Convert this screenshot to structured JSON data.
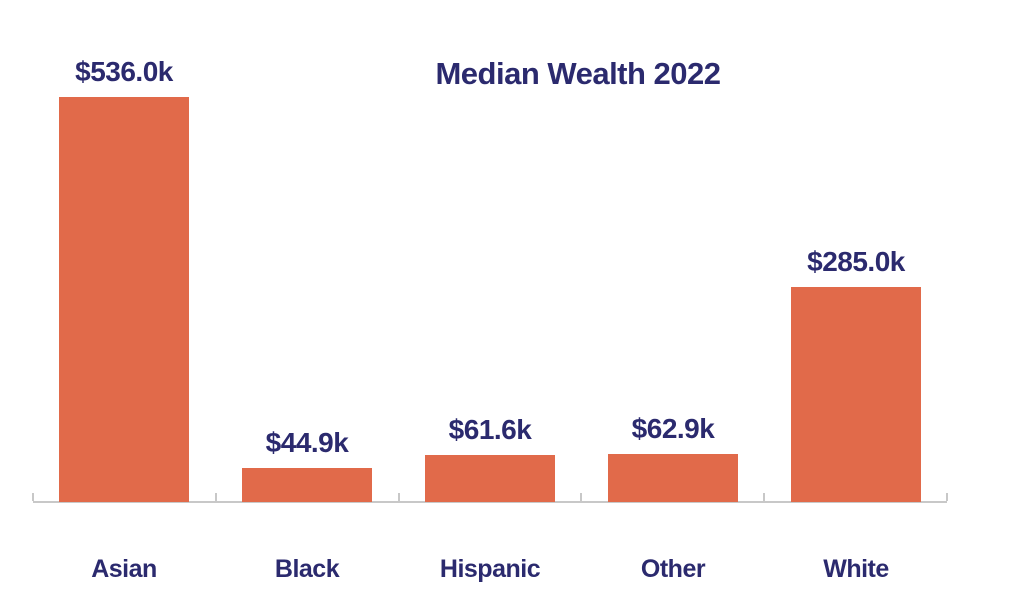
{
  "chart_data": {
    "type": "bar",
    "title": "Median Wealth 2022",
    "categories": [
      "Asian",
      "Black",
      "Hispanic",
      "Other",
      "White"
    ],
    "values": [
      536.0,
      44.9,
      61.6,
      62.9,
      285.0
    ],
    "value_labels": [
      "$536.0k",
      "$44.9k",
      "$61.6k",
      "$62.9k",
      "$285.0k"
    ],
    "xlabel": "",
    "ylabel": "",
    "ylim": [
      0,
      536
    ],
    "grid": false,
    "legend": false,
    "value_axis_hidden": true,
    "colors": {
      "bar": "#E16A4A",
      "text": "#2B2A6E",
      "axis_line": "#C8C8C8",
      "background": "#FFFFFF"
    }
  }
}
